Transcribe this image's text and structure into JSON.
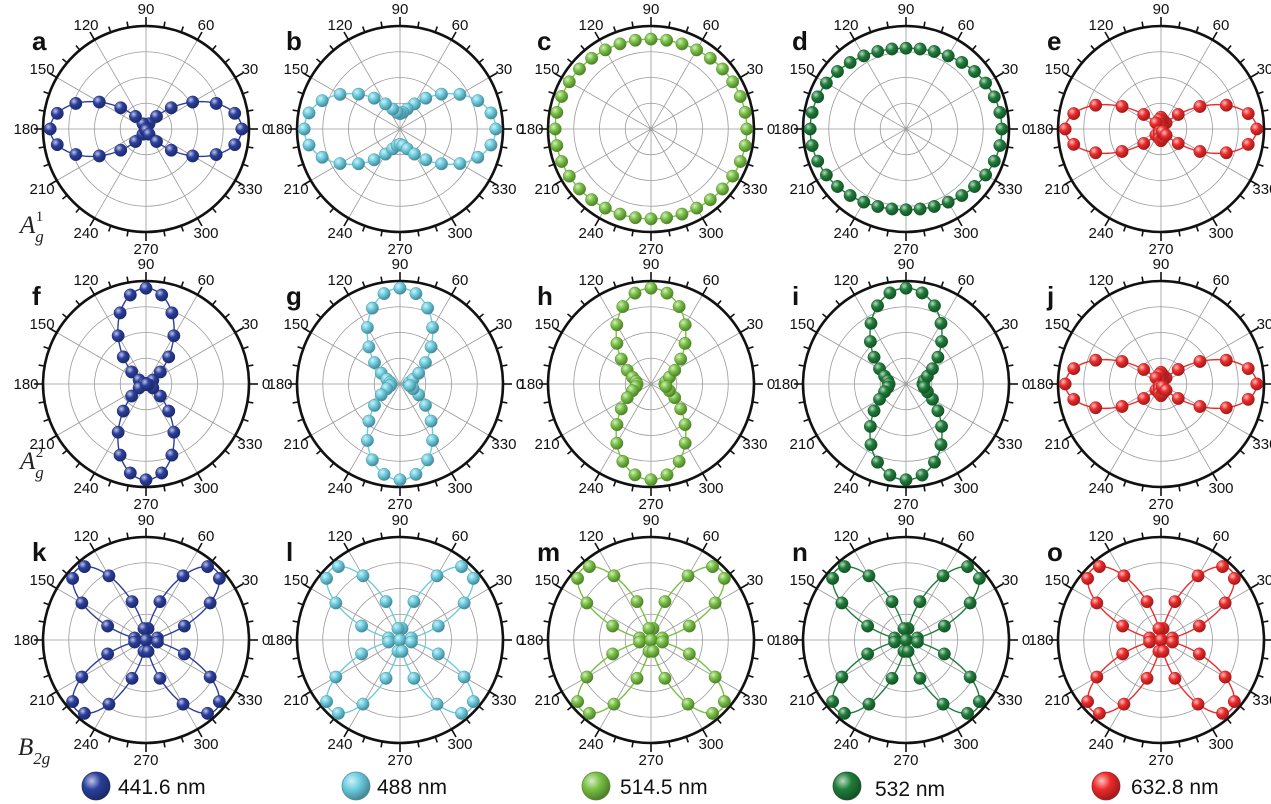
{
  "angle_labels": [
    "0",
    "30",
    "60",
    "90",
    "120",
    "150",
    "180",
    "210",
    "240",
    "270",
    "300",
    "330"
  ],
  "row_labels": [
    {
      "base": "A",
      "sub": "g",
      "sup": "1"
    },
    {
      "base": "A",
      "sub": "g",
      "sup": "2"
    },
    {
      "base": "B",
      "sub": "2g",
      "sup": ""
    }
  ],
  "legend": [
    {
      "label": "441.6 nm",
      "color": "#2b3f9e"
    },
    {
      "label": "488 nm",
      "color": "#6ccde0"
    },
    {
      "label": "514.5 nm",
      "color": "#78c143"
    },
    {
      "label": "532 nm",
      "color": "#1f7d3a"
    },
    {
      "label": "632.8 nm",
      "color": "#ee2a2a"
    }
  ],
  "chart_data": [
    {
      "type": "polar-scatter",
      "panel": "a",
      "mode": "Ag1",
      "wavelength": "441.6 nm",
      "color": "#2b3f9e",
      "model": {
        "a": 1.0,
        "c": 0.0,
        "phase_c": 0,
        "b2g": 0
      },
      "angular_axis_deg": [
        0,
        360
      ],
      "radial_max": 1.0,
      "grid": true
    },
    {
      "type": "polar-scatter",
      "panel": "b",
      "mode": "Ag1",
      "wavelength": "488 nm",
      "color": "#6ccde0",
      "model": {
        "a": 1.0,
        "c": 0.4,
        "phase_c": 0,
        "b2g": 0
      },
      "angular_axis_deg": [
        0,
        360
      ],
      "radial_max": 1.0,
      "grid": true
    },
    {
      "type": "polar-scatter",
      "panel": "c",
      "mode": "Ag1",
      "wavelength": "514.5 nm",
      "color": "#78c143",
      "model": {
        "a": 0.96,
        "c": 0.93,
        "phase_c": 0,
        "b2g": 0
      },
      "angular_axis_deg": [
        0,
        360
      ],
      "radial_max": 1.0,
      "grid": true
    },
    {
      "type": "polar-scatter",
      "panel": "d",
      "mode": "Ag1",
      "wavelength": "532 nm",
      "color": "#1f7d3a",
      "model": {
        "a": 0.98,
        "c": 0.9,
        "phase_c": 0,
        "b2g": 0
      },
      "angular_axis_deg": [
        0,
        360
      ],
      "radial_max": 1.0,
      "grid": true
    },
    {
      "type": "polar-scatter",
      "panel": "e",
      "mode": "Ag1",
      "wavelength": "632.8 nm",
      "color": "#ee2a2a",
      "model": {
        "a": 1.0,
        "c": 0.35,
        "phase_c": 140,
        "b2g": 0
      },
      "angular_axis_deg": [
        0,
        360
      ],
      "radial_max": 1.0,
      "grid": true
    },
    {
      "type": "polar-scatter",
      "panel": "f",
      "mode": "Ag2",
      "wavelength": "441.6 nm",
      "color": "#2b3f9e",
      "model": {
        "a": 0.05,
        "c": 1.0,
        "phase_c": 0,
        "b2g": 0
      },
      "angular_axis_deg": [
        0,
        360
      ],
      "radial_max": 1.0,
      "grid": true
    },
    {
      "type": "polar-scatter",
      "panel": "g",
      "mode": "Ag2",
      "wavelength": "488 nm",
      "color": "#6ccde0",
      "model": {
        "a": 0.3,
        "c": 1.0,
        "phase_c": 0,
        "b2g": 0
      },
      "angular_axis_deg": [
        0,
        360
      ],
      "radial_max": 1.0,
      "grid": true
    },
    {
      "type": "polar-scatter",
      "panel": "h",
      "mode": "Ag2",
      "wavelength": "514.5 nm",
      "color": "#78c143",
      "model": {
        "a": 0.38,
        "c": 1.0,
        "phase_c": 0,
        "b2g": 0
      },
      "angular_axis_deg": [
        0,
        360
      ],
      "radial_max": 1.0,
      "grid": true
    },
    {
      "type": "polar-scatter",
      "panel": "i",
      "mode": "Ag2",
      "wavelength": "532 nm",
      "color": "#1f7d3a",
      "model": {
        "a": 0.42,
        "c": 1.0,
        "phase_c": 0,
        "b2g": 0
      },
      "angular_axis_deg": [
        0,
        360
      ],
      "radial_max": 1.0,
      "grid": true
    },
    {
      "type": "polar-scatter",
      "panel": "j",
      "mode": "Ag2",
      "wavelength": "632.8 nm",
      "color": "#ee2a2a",
      "model": {
        "a": 1.0,
        "c": 0.35,
        "phase_c": 140,
        "b2g": 0
      },
      "angular_axis_deg": [
        0,
        360
      ],
      "radial_max": 1.0,
      "grid": true
    },
    {
      "type": "polar-scatter",
      "panel": "k",
      "mode": "B2g",
      "wavelength": "441.6 nm",
      "color": "#2b3f9e",
      "model": {
        "a": 0,
        "c": 0,
        "phase_c": 0,
        "b2g": 1.0
      },
      "angular_axis_deg": [
        0,
        360
      ],
      "radial_max": 1.0,
      "grid": true
    },
    {
      "type": "polar-scatter",
      "panel": "l",
      "mode": "B2g",
      "wavelength": "488 nm",
      "color": "#6ccde0",
      "model": {
        "a": 0,
        "c": 0,
        "phase_c": 0,
        "b2g": 1.0
      },
      "angular_axis_deg": [
        0,
        360
      ],
      "radial_max": 1.0,
      "grid": true
    },
    {
      "type": "polar-scatter",
      "panel": "m",
      "mode": "B2g",
      "wavelength": "514.5 nm",
      "color": "#78c143",
      "model": {
        "a": 0,
        "c": 0,
        "phase_c": 0,
        "b2g": 1.0
      },
      "angular_axis_deg": [
        0,
        360
      ],
      "radial_max": 1.0,
      "grid": true
    },
    {
      "type": "polar-scatter",
      "panel": "n",
      "mode": "B2g",
      "wavelength": "532 nm",
      "color": "#1f7d3a",
      "model": {
        "a": 0,
        "c": 0,
        "phase_c": 0,
        "b2g": 1.0
      },
      "angular_axis_deg": [
        0,
        360
      ],
      "radial_max": 1.0,
      "grid": true
    },
    {
      "type": "polar-scatter",
      "panel": "o",
      "mode": "B2g",
      "wavelength": "632.8 nm",
      "color": "#ee2a2a",
      "model": {
        "a": 0,
        "c": 0,
        "phase_c": 0,
        "b2g": 1.0
      },
      "angular_axis_deg": [
        0,
        360
      ],
      "radial_max": 1.0,
      "grid": true
    }
  ]
}
